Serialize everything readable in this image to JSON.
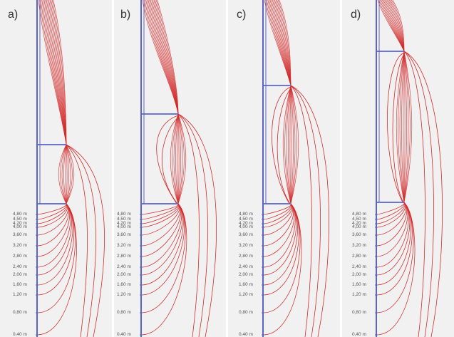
{
  "panels": [
    {
      "label": "a)",
      "y_labels": [
        "4,80 m",
        "4,50 m",
        "4,20 m",
        "4,00 m",
        "3,60 m",
        "3,20 m",
        "2,80 m",
        "2,40 m",
        "2,00 m",
        "1,60 m",
        "1,20 m",
        "0,80 m",
        "0,40 m"
      ]
    },
    {
      "label": "b)",
      "y_labels": [
        "4,80 m",
        "4,50 m",
        "4,20 m",
        "4,00 m",
        "3,60 m",
        "3,20 m",
        "2,80 m",
        "2,40 m",
        "2,00 m",
        "1,60 m",
        "1,20 m",
        "0,80 m",
        "0,40 m"
      ]
    },
    {
      "label": "c)",
      "y_labels": [
        "4,80 m",
        "4,50 m",
        "4,20 m",
        "4,00 m",
        "3,60 m",
        "3,20 m",
        "2,80 m",
        "2,40 m",
        "2,00 m",
        "1,60 m",
        "1,20 m",
        "0,80 m",
        "0,40 m"
      ]
    },
    {
      "label": "d)",
      "y_labels": [
        "4,80 m",
        "4,50 m",
        "4,20 m",
        "4,00 m",
        "3,60 m",
        "3,20 m",
        "2,80 m",
        "2,40 m",
        "2,00 m",
        "1,60 m",
        "1,20 m",
        "0,80 m",
        "0,40 m"
      ]
    }
  ],
  "colors": {
    "flow_line": "#d42a2a",
    "structure": "#5a64c8",
    "panel_bg": "#f1f1f1",
    "label": "#333333"
  }
}
